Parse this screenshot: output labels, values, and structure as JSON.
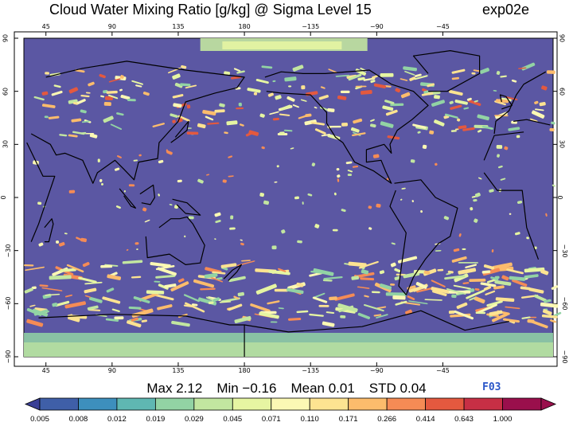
{
  "header": {
    "title": "Cloud Water Mixing Ratio [g/kg]  @ Sigma Level 15",
    "experiment": "exp02e"
  },
  "map": {
    "top_lon_ticks": [
      "45",
      "90",
      "135",
      "180",
      "−135",
      "−90",
      "−45"
    ],
    "bottom_lon_ticks": [
      "45",
      "90",
      "135",
      "180",
      "−135",
      "−90",
      "−45"
    ],
    "left_lat_ticks": [
      "90",
      "60",
      "30",
      "0",
      "−30",
      "−60",
      "−90"
    ],
    "right_lat_ticks": [
      "90",
      "60",
      "30",
      "0",
      "−30",
      "−60",
      "−90"
    ],
    "background_color": "#5b57a3",
    "coastline_color": "#000000"
  },
  "stats": {
    "max": "Max 2.12",
    "min": "Min −0.16",
    "mean": "Mean 0.01",
    "std": "STD 0.04"
  },
  "badge": "F03",
  "colorbar": {
    "labels": [
      "0.005",
      "0.008",
      "0.012",
      "0.019",
      "0.029",
      "0.045",
      "0.071",
      "0.110",
      "0.171",
      "0.266",
      "0.414",
      "0.643",
      "1.000"
    ],
    "colors": [
      "#3f5fa8",
      "#3d8fbd",
      "#5fb7b2",
      "#92d3a4",
      "#c2e6a0",
      "#e6f5a2",
      "#fbf8b4",
      "#fde391",
      "#fcbc6c",
      "#f58b55",
      "#e4593f",
      "#c72f45",
      "#9a0f4c"
    ],
    "low_color": "#3a3f96",
    "high_color": "#9a0f4c"
  }
}
